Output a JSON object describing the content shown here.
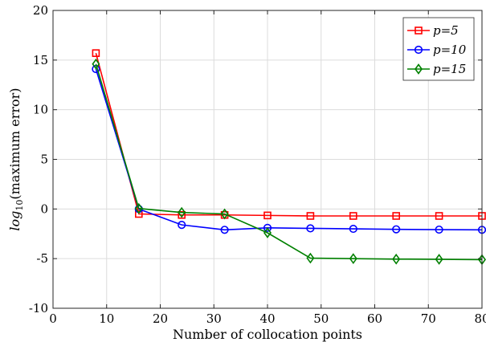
{
  "chart_data": {
    "type": "line",
    "title": "",
    "xlabel": "Number of collocation points",
    "ylabel_main": "log",
    "ylabel_sub": "10",
    "ylabel_rest": "(maximum error)",
    "xlim": [
      0,
      80
    ],
    "ylim": [
      -10,
      20
    ],
    "xticks": [
      0,
      10,
      20,
      30,
      40,
      50,
      60,
      70,
      80
    ],
    "yticks": [
      -10,
      -5,
      0,
      5,
      10,
      15,
      20
    ],
    "xtick_labels": [
      "0",
      "10",
      "20",
      "30",
      "40",
      "50",
      "60",
      "70",
      "80"
    ],
    "ytick_labels": [
      "-10",
      "-5",
      "0",
      "5",
      "10",
      "15",
      "20"
    ],
    "grid": true,
    "legend_position": "top-right",
    "x": [
      8,
      16,
      24,
      32,
      40,
      48,
      56,
      64,
      72,
      80
    ],
    "series": [
      {
        "name": "p=5",
        "color": "#ff0000",
        "marker": "square",
        "values": [
          15.7,
          -0.5,
          -0.6,
          -0.6,
          -0.65,
          -0.7,
          -0.7,
          -0.7,
          -0.7,
          -0.7
        ]
      },
      {
        "name": "p=10",
        "color": "#0000ff",
        "marker": "circle",
        "values": [
          14.1,
          0.0,
          -1.6,
          -2.1,
          -1.9,
          -1.95,
          -2.0,
          -2.05,
          -2.08,
          -2.1
        ]
      },
      {
        "name": "p=15",
        "color": "#008000",
        "marker": "diamond",
        "values": [
          14.6,
          0.05,
          -0.35,
          -0.5,
          -2.4,
          -4.95,
          -5.0,
          -5.05,
          -5.07,
          -5.1
        ]
      }
    ]
  }
}
